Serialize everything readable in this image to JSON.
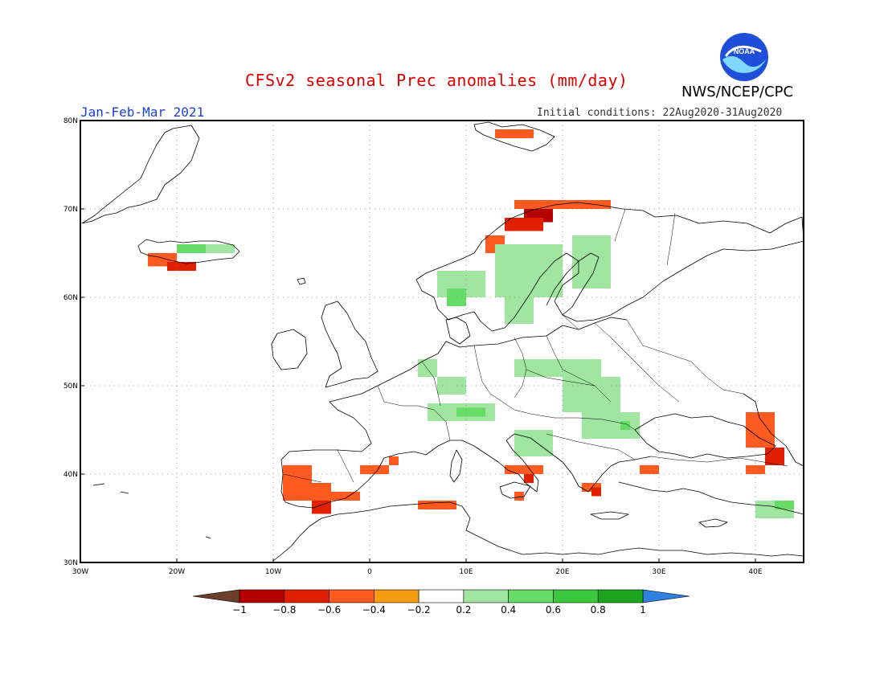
{
  "header": {
    "title": "CFSv2 seasonal Prec anomalies (mm/day)",
    "period": "Jan-Feb-Mar 2021",
    "initial_conditions": "Initial conditions: 22Aug2020-31Aug2020",
    "agency": "NWS/NCEP/CPC",
    "logo_text": "NOAA"
  },
  "map": {
    "lon_range": [
      -30,
      45
    ],
    "lat_range": [
      30,
      80
    ],
    "lon_ticks": [
      "30W",
      "20W",
      "10W",
      "0",
      "10E",
      "20E",
      "30E",
      "40E"
    ],
    "lat_ticks": [
      "30N",
      "40N",
      "50N",
      "60N",
      "70N",
      "80N"
    ],
    "grid": "dotted",
    "anomaly_patches": [
      {
        "lon": [
          15,
          22
        ],
        "lat": [
          70,
          71
        ],
        "level": "-0.4"
      },
      {
        "lon": [
          16,
          19
        ],
        "lat": [
          68.5,
          70
        ],
        "level": "-0.8"
      },
      {
        "lon": [
          14,
          18
        ],
        "lat": [
          67.5,
          69
        ],
        "level": "-0.6"
      },
      {
        "lon": [
          12,
          14
        ],
        "lat": [
          65,
          67
        ],
        "level": "-0.4"
      },
      {
        "lon": [
          22,
          25
        ],
        "lat": [
          70,
          71
        ],
        "level": "-0.4"
      },
      {
        "lon": [
          -23,
          -20
        ],
        "lat": [
          63.5,
          65
        ],
        "level": "-0.4"
      },
      {
        "lon": [
          -21,
          -18
        ],
        "lat": [
          63,
          64
        ],
        "level": "-0.6"
      },
      {
        "lon": [
          -20,
          -17
        ],
        "lat": [
          65,
          66
        ],
        "level": "0.4"
      },
      {
        "lon": [
          -17,
          -14
        ],
        "lat": [
          65,
          66
        ],
        "level": "0.2"
      },
      {
        "lon": [
          13,
          20
        ],
        "lat": [
          60,
          66
        ],
        "level": "0.2"
      },
      {
        "lon": [
          21,
          25
        ],
        "lat": [
          61,
          67
        ],
        "level": "0.2"
      },
      {
        "lon": [
          7,
          12
        ],
        "lat": [
          60,
          63
        ],
        "level": "0.2"
      },
      {
        "lon": [
          8,
          10
        ],
        "lat": [
          59,
          61
        ],
        "level": "0.4"
      },
      {
        "lon": [
          14,
          17
        ],
        "lat": [
          57,
          60
        ],
        "level": "0.2"
      },
      {
        "lon": [
          15,
          24
        ],
        "lat": [
          51,
          53
        ],
        "level": "0.2"
      },
      {
        "lon": [
          20,
          26
        ],
        "lat": [
          47,
          51
        ],
        "level": "0.2"
      },
      {
        "lon": [
          22,
          28
        ],
        "lat": [
          44,
          47
        ],
        "level": "0.2"
      },
      {
        "lon": [
          26,
          27
        ],
        "lat": [
          45,
          46
        ],
        "level": "0.4"
      },
      {
        "lon": [
          6,
          13
        ],
        "lat": [
          46,
          48
        ],
        "level": "0.2"
      },
      {
        "lon": [
          9,
          12
        ],
        "lat": [
          46.5,
          47.5
        ],
        "level": "0.4"
      },
      {
        "lon": [
          15,
          19
        ],
        "lat": [
          42,
          45
        ],
        "level": "0.2"
      },
      {
        "lon": [
          5,
          7
        ],
        "lat": [
          51,
          53
        ],
        "level": "0.2"
      },
      {
        "lon": [
          7,
          10
        ],
        "lat": [
          49,
          51
        ],
        "level": "0.2"
      },
      {
        "lon": [
          -6,
          -4
        ],
        "lat": [
          36,
          39
        ],
        "level": "-0.4"
      },
      {
        "lon": [
          -9,
          -6
        ],
        "lat": [
          37,
          41
        ],
        "level": "-0.4"
      },
      {
        "lon": [
          -6,
          -4
        ],
        "lat": [
          35.5,
          37
        ],
        "level": "-0.6"
      },
      {
        "lon": [
          -4,
          -1
        ],
        "lat": [
          37,
          38
        ],
        "level": "-0.4"
      },
      {
        "lon": [
          -1,
          2
        ],
        "lat": [
          40,
          41
        ],
        "level": "-0.4"
      },
      {
        "lon": [
          2,
          3
        ],
        "lat": [
          41,
          42
        ],
        "level": "-0.4"
      },
      {
        "lon": [
          5,
          9
        ],
        "lat": [
          36,
          37
        ],
        "level": "-0.4"
      },
      {
        "lon": [
          14,
          18
        ],
        "lat": [
          40,
          41
        ],
        "level": "-0.4"
      },
      {
        "lon": [
          16,
          17
        ],
        "lat": [
          39,
          40
        ],
        "level": "-0.6"
      },
      {
        "lon": [
          15,
          16
        ],
        "lat": [
          37,
          38
        ],
        "level": "-0.4"
      },
      {
        "lon": [
          22,
          24
        ],
        "lat": [
          38,
          39
        ],
        "level": "-0.4"
      },
      {
        "lon": [
          23,
          24
        ],
        "lat": [
          37.5,
          38.5
        ],
        "level": "-0.6"
      },
      {
        "lon": [
          28,
          30
        ],
        "lat": [
          40,
          41
        ],
        "level": "-0.4"
      },
      {
        "lon": [
          39,
          42
        ],
        "lat": [
          43,
          47
        ],
        "level": "-0.4"
      },
      {
        "lon": [
          41,
          43
        ],
        "lat": [
          41,
          43
        ],
        "level": "-0.6"
      },
      {
        "lon": [
          39,
          41
        ],
        "lat": [
          40,
          41
        ],
        "level": "-0.4"
      },
      {
        "lon": [
          40,
          44
        ],
        "lat": [
          35,
          37
        ],
        "level": "0.2"
      },
      {
        "lon": [
          42,
          44
        ],
        "lat": [
          36,
          37
        ],
        "level": "0.4"
      },
      {
        "lon": [
          13,
          17
        ],
        "lat": [
          78,
          79
        ],
        "level": "-0.4"
      }
    ]
  },
  "colorbar": {
    "labels": [
      "-1",
      "-0.8",
      "-0.6",
      "-0.4",
      "-0.2",
      "0.2",
      "0.4",
      "0.6",
      "0.8",
      "1"
    ],
    "colors": {
      "below_min": "#6b3f2a",
      "-0.8": "#b40000",
      "-0.6": "#e02000",
      "-0.4": "#ff5a1f",
      "-0.2": "#f59c12",
      "neutral": "#ffffff",
      "0.2": "#a0e6a0",
      "0.4": "#66dc66",
      "0.6": "#3cc83c",
      "0.8": "#1ea51e",
      "above_max": "#2f7fe0"
    }
  }
}
